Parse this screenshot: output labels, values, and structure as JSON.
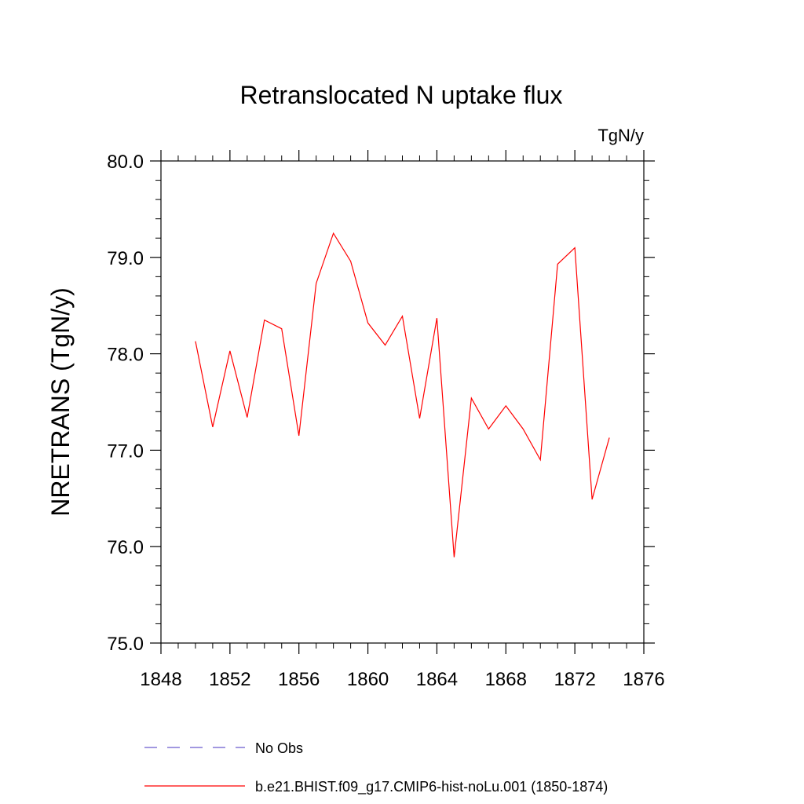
{
  "chart_data": {
    "type": "line",
    "title": "Retranslocated N uptake flux",
    "units": "TgN/y",
    "ylabel": "NRETRANS  (TgN/y)",
    "xlabel": "",
    "xlim": [
      1848,
      1876
    ],
    "ylim": [
      75.0,
      80.0
    ],
    "x_ticks": [
      "1848",
      "1852",
      "1856",
      "1860",
      "1864",
      "1868",
      "1872",
      "1876"
    ],
    "y_ticks": [
      "75.0",
      "76.0",
      "77.0",
      "78.0",
      "79.0",
      "80.0"
    ],
    "grid": false,
    "legend_position": "bottom",
    "series": [
      {
        "name": "b.e21.BHIST.f09_g17.CMIP6-hist-noLu.001 (1850-1874)",
        "color": "#ff0000",
        "style": "solid",
        "x": [
          1850,
          1851,
          1852,
          1853,
          1854,
          1855,
          1856,
          1857,
          1858,
          1859,
          1860,
          1861,
          1862,
          1863,
          1864,
          1865,
          1866,
          1867,
          1868,
          1869,
          1870,
          1871,
          1872,
          1873,
          1874
        ],
        "y": [
          78.13,
          77.24,
          78.03,
          77.34,
          78.35,
          78.26,
          77.15,
          78.73,
          79.25,
          78.96,
          78.32,
          78.09,
          78.39,
          77.33,
          78.37,
          75.89,
          77.54,
          77.22,
          77.46,
          77.22,
          76.9,
          78.93,
          79.1,
          76.49,
          77.13
        ]
      }
    ],
    "legend": [
      {
        "label": "No Obs",
        "color": "#6a5acd",
        "style": "dashed"
      },
      {
        "label": "b.e21.BHIST.f09_g17.CMIP6-hist-noLu.001 (1850-1874)",
        "color": "#ff0000",
        "style": "solid"
      }
    ]
  }
}
